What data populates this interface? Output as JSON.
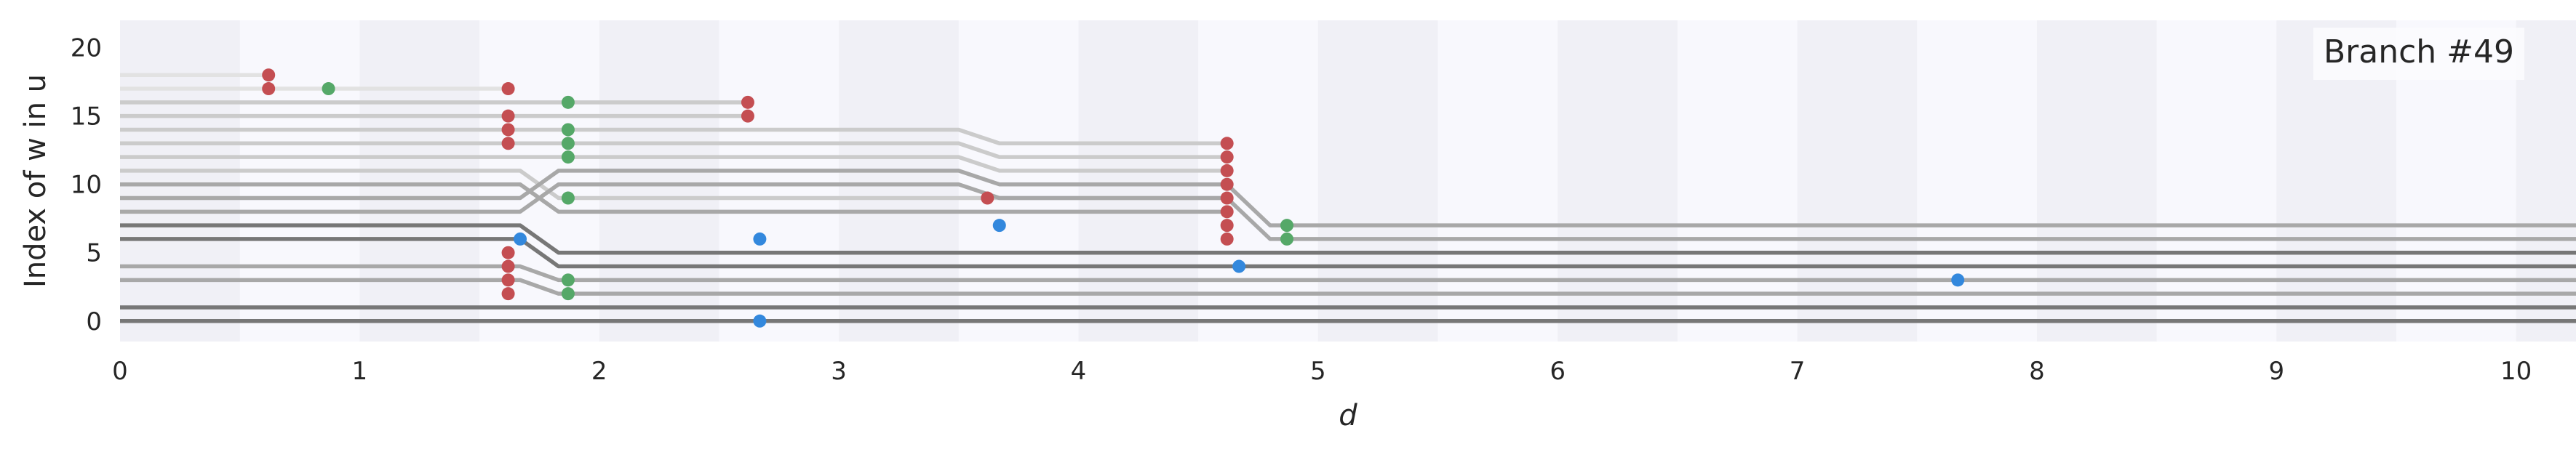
{
  "chart_data": {
    "type": "line",
    "legend": {
      "text": "Branch #49",
      "placement": "top-right"
    },
    "xlabel": "d",
    "ylabel": "Index of w in u",
    "xlim": [
      0,
      10.25
    ],
    "ylim": [
      -1.5,
      22
    ],
    "x_ticks": [
      0,
      1,
      2,
      3,
      4,
      5,
      6,
      7,
      8,
      9,
      10
    ],
    "y_ticks": [
      0,
      5,
      10,
      15,
      20
    ],
    "x_tick_labels": [
      "0",
      "1",
      "2",
      "3",
      "4",
      "5",
      "6",
      "7",
      "8",
      "9",
      "10"
    ],
    "y_tick_labels": [
      "0",
      "5",
      "10",
      "15",
      "20"
    ],
    "background_bands": {
      "width": 0.5,
      "period": 1,
      "color": "#f0f0f6",
      "base": "#f8f8fd"
    },
    "line_colors": {
      "dark": "#777777",
      "mid": "#a8a8a8",
      "light": "#cbcbcb",
      "faint": "#e2e2e2"
    },
    "marker_colors": {
      "red": "#c44e52",
      "green": "#55a868",
      "blue": "#3388dd"
    },
    "tracks": [
      {
        "shade": "dark",
        "points": [
          [
            0,
            0
          ],
          [
            10.25,
            0
          ]
        ]
      },
      {
        "shade": "dark",
        "points": [
          [
            0,
            1
          ],
          [
            10.25,
            1
          ]
        ]
      },
      {
        "shade": "dark",
        "points": [
          [
            0,
            6
          ],
          [
            1.67,
            6
          ],
          [
            1.83,
            4
          ],
          [
            10.25,
            4
          ]
        ]
      },
      {
        "shade": "dark",
        "points": [
          [
            0,
            7
          ],
          [
            1.67,
            7
          ],
          [
            1.83,
            5
          ],
          [
            10.25,
            5
          ]
        ]
      },
      {
        "shade": "mid",
        "points": [
          [
            0,
            3
          ],
          [
            1.67,
            3
          ],
          [
            1.83,
            2
          ],
          [
            10.25,
            2
          ]
        ]
      },
      {
        "shade": "mid",
        "points": [
          [
            0,
            4
          ],
          [
            1.67,
            4
          ],
          [
            1.83,
            3
          ],
          [
            10.25,
            3
          ]
        ]
      },
      {
        "shade": "mid",
        "points": [
          [
            0,
            8
          ],
          [
            1.67,
            8
          ],
          [
            1.83,
            10
          ],
          [
            3.5,
            10
          ],
          [
            3.67,
            9
          ],
          [
            4.62,
            9
          ],
          [
            4.8,
            6
          ],
          [
            10.25,
            6
          ]
        ]
      },
      {
        "shade": "mid",
        "points": [
          [
            0,
            9
          ],
          [
            1.67,
            9
          ],
          [
            1.83,
            11
          ],
          [
            3.5,
            11
          ],
          [
            3.67,
            10
          ],
          [
            4.62,
            10
          ],
          [
            4.8,
            7
          ],
          [
            10.25,
            7
          ]
        ]
      },
      {
        "shade": "mid",
        "points": [
          [
            0,
            10
          ],
          [
            1.67,
            10
          ],
          [
            1.83,
            8
          ],
          [
            4.62,
            8
          ]
        ]
      },
      {
        "shade": "light",
        "points": [
          [
            0,
            11
          ],
          [
            1.67,
            11
          ],
          [
            1.83,
            9
          ],
          [
            4.62,
            9
          ]
        ]
      },
      {
        "shade": "light",
        "points": [
          [
            0,
            12
          ],
          [
            1.67,
            12
          ],
          [
            1.83,
            12
          ],
          [
            3.5,
            12
          ],
          [
            3.67,
            11
          ],
          [
            4.62,
            11
          ]
        ]
      },
      {
        "shade": "light",
        "points": [
          [
            0,
            13
          ],
          [
            1.67,
            13
          ],
          [
            1.83,
            13
          ],
          [
            3.5,
            13
          ],
          [
            3.67,
            12
          ],
          [
            4.62,
            12
          ]
        ]
      },
      {
        "shade": "light",
        "points": [
          [
            0,
            14
          ],
          [
            1.67,
            14
          ],
          [
            1.83,
            14
          ],
          [
            3.5,
            14
          ],
          [
            3.67,
            13
          ],
          [
            4.62,
            13
          ]
        ]
      },
      {
        "shade": "light",
        "points": [
          [
            0,
            15
          ],
          [
            1.67,
            15
          ],
          [
            1.83,
            15
          ],
          [
            2.62,
            15
          ]
        ]
      },
      {
        "shade": "light",
        "points": [
          [
            0,
            16
          ],
          [
            1.67,
            16
          ],
          [
            1.83,
            16
          ],
          [
            2.62,
            16
          ]
        ]
      },
      {
        "shade": "faint",
        "points": [
          [
            0,
            17
          ],
          [
            1.62,
            17
          ]
        ]
      },
      {
        "shade": "faint",
        "points": [
          [
            0,
            18
          ],
          [
            0.62,
            18
          ]
        ]
      }
    ],
    "markers": [
      {
        "x": 0.62,
        "y": 18,
        "color": "red"
      },
      {
        "x": 0.62,
        "y": 17,
        "color": "red"
      },
      {
        "x": 0.87,
        "y": 17,
        "color": "green"
      },
      {
        "x": 1.62,
        "y": 17,
        "color": "red"
      },
      {
        "x": 1.62,
        "y": 15,
        "color": "red"
      },
      {
        "x": 1.62,
        "y": 14,
        "color": "red"
      },
      {
        "x": 1.62,
        "y": 13,
        "color": "red"
      },
      {
        "x": 1.62,
        "y": 5,
        "color": "red"
      },
      {
        "x": 1.62,
        "y": 4,
        "color": "red"
      },
      {
        "x": 1.62,
        "y": 3,
        "color": "red"
      },
      {
        "x": 1.62,
        "y": 2,
        "color": "red"
      },
      {
        "x": 1.67,
        "y": 6,
        "color": "blue"
      },
      {
        "x": 1.87,
        "y": 16,
        "color": "green"
      },
      {
        "x": 1.87,
        "y": 14,
        "color": "green"
      },
      {
        "x": 1.87,
        "y": 13,
        "color": "green"
      },
      {
        "x": 1.87,
        "y": 12,
        "color": "green"
      },
      {
        "x": 1.87,
        "y": 9,
        "color": "green"
      },
      {
        "x": 1.87,
        "y": 3,
        "color": "green"
      },
      {
        "x": 1.87,
        "y": 2,
        "color": "green"
      },
      {
        "x": 2.62,
        "y": 16,
        "color": "red"
      },
      {
        "x": 2.62,
        "y": 15,
        "color": "red"
      },
      {
        "x": 2.67,
        "y": 6,
        "color": "blue"
      },
      {
        "x": 2.67,
        "y": 0,
        "color": "blue"
      },
      {
        "x": 3.62,
        "y": 9,
        "color": "red"
      },
      {
        "x": 3.67,
        "y": 7,
        "color": "blue"
      },
      {
        "x": 4.62,
        "y": 13,
        "color": "red"
      },
      {
        "x": 4.62,
        "y": 12,
        "color": "red"
      },
      {
        "x": 4.62,
        "y": 11,
        "color": "red"
      },
      {
        "x": 4.62,
        "y": 10,
        "color": "red"
      },
      {
        "x": 4.62,
        "y": 9,
        "color": "red"
      },
      {
        "x": 4.62,
        "y": 8,
        "color": "red"
      },
      {
        "x": 4.62,
        "y": 7,
        "color": "red"
      },
      {
        "x": 4.62,
        "y": 6,
        "color": "red"
      },
      {
        "x": 4.67,
        "y": 4,
        "color": "blue"
      },
      {
        "x": 4.87,
        "y": 7,
        "color": "green"
      },
      {
        "x": 4.87,
        "y": 6,
        "color": "green"
      },
      {
        "x": 7.67,
        "y": 3,
        "color": "blue"
      }
    ]
  }
}
